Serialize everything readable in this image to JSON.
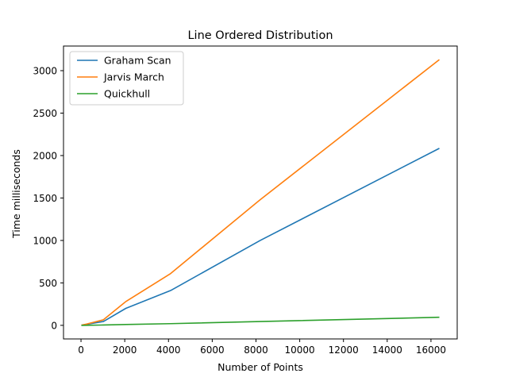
{
  "chart_data": {
    "type": "line",
    "title": "Line Ordered Distribution",
    "xlabel": "Number of Points",
    "ylabel": "Time milliseconds",
    "xlim": [
      -800,
      17200
    ],
    "ylim": [
      -160,
      3290
    ],
    "xticks": [
      0,
      2000,
      4000,
      6000,
      8000,
      10000,
      12000,
      14000,
      16000
    ],
    "yticks": [
      0,
      500,
      1000,
      1500,
      2000,
      2500,
      3000
    ],
    "xtick_labels": [
      "0",
      "2000",
      "4000",
      "6000",
      "8000",
      "10000",
      "12000",
      "14000",
      "16000"
    ],
    "ytick_labels": [
      "0",
      "500",
      "1000",
      "1500",
      "2000",
      "2500",
      "3000"
    ],
    "grid": false,
    "legend_position": "top-left",
    "x": [
      16,
      256,
      1024,
      2048,
      4096,
      8192,
      16384
    ],
    "series": [
      {
        "name": "Graham Scan",
        "color": "#1f77b4",
        "values": [
          1,
          12,
          45,
          200,
          410,
          1000,
          2085
        ]
      },
      {
        "name": "Jarvis March",
        "color": "#ff7f0e",
        "values": [
          2,
          15,
          65,
          280,
          610,
          1480,
          3130
        ]
      },
      {
        "name": "Quickhull",
        "color": "#2ca02c",
        "values": [
          0,
          1,
          4,
          10,
          20,
          45,
          95
        ]
      }
    ]
  }
}
